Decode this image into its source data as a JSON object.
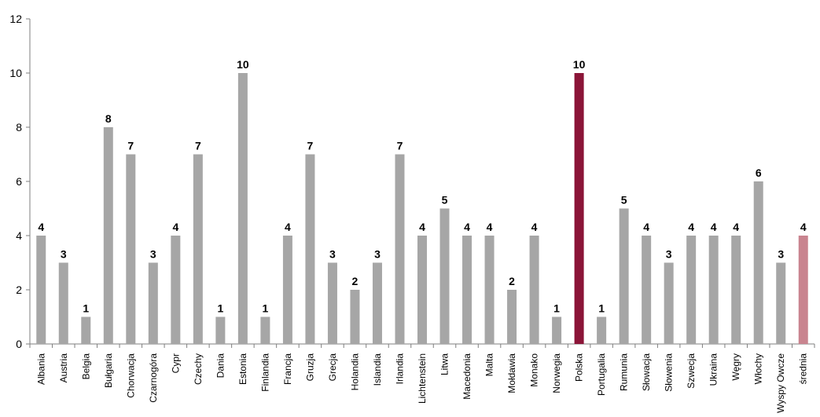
{
  "chart_data": {
    "type": "bar",
    "title": "",
    "xlabel": "",
    "ylabel": "",
    "ylim": [
      0,
      12
    ],
    "yticks": [
      0,
      2,
      4,
      6,
      8,
      10,
      12
    ],
    "grid": false,
    "legend": "none",
    "categories": [
      "Albania",
      "Austria",
      "Belgia",
      "Bułgaria",
      "Chorwacja",
      "Czarnogóra",
      "Cypr",
      "Czechy",
      "Dania",
      "Estonia",
      "Finlandia",
      "Francja",
      "Gruzja",
      "Grecja",
      "Holandia",
      "Islandia",
      "Irlandia",
      "Lichtenstein",
      "Litwa",
      "Macedonia",
      "Malta",
      "Mołdawia",
      "Monako",
      "Norwegia",
      "Polska",
      "Portugalia",
      "Rumunia",
      "Słowacja",
      "Słowenia",
      "Szwecja",
      "Ukraina",
      "Węgry",
      "Włochy",
      "Wyspy Owcze",
      "średnia"
    ],
    "values": [
      4,
      3,
      1,
      8,
      7,
      3,
      4,
      7,
      1,
      10,
      1,
      4,
      7,
      3,
      2,
      3,
      7,
      4,
      5,
      4,
      4,
      2,
      4,
      1,
      10,
      1,
      5,
      4,
      3,
      4,
      4,
      4,
      6,
      3,
      4
    ],
    "colors": {
      "default": "#a6a6a6",
      "highlight": "#8b1538",
      "average": "#c9848f"
    },
    "highlight_category": "Polska",
    "average_category": "średnia"
  }
}
